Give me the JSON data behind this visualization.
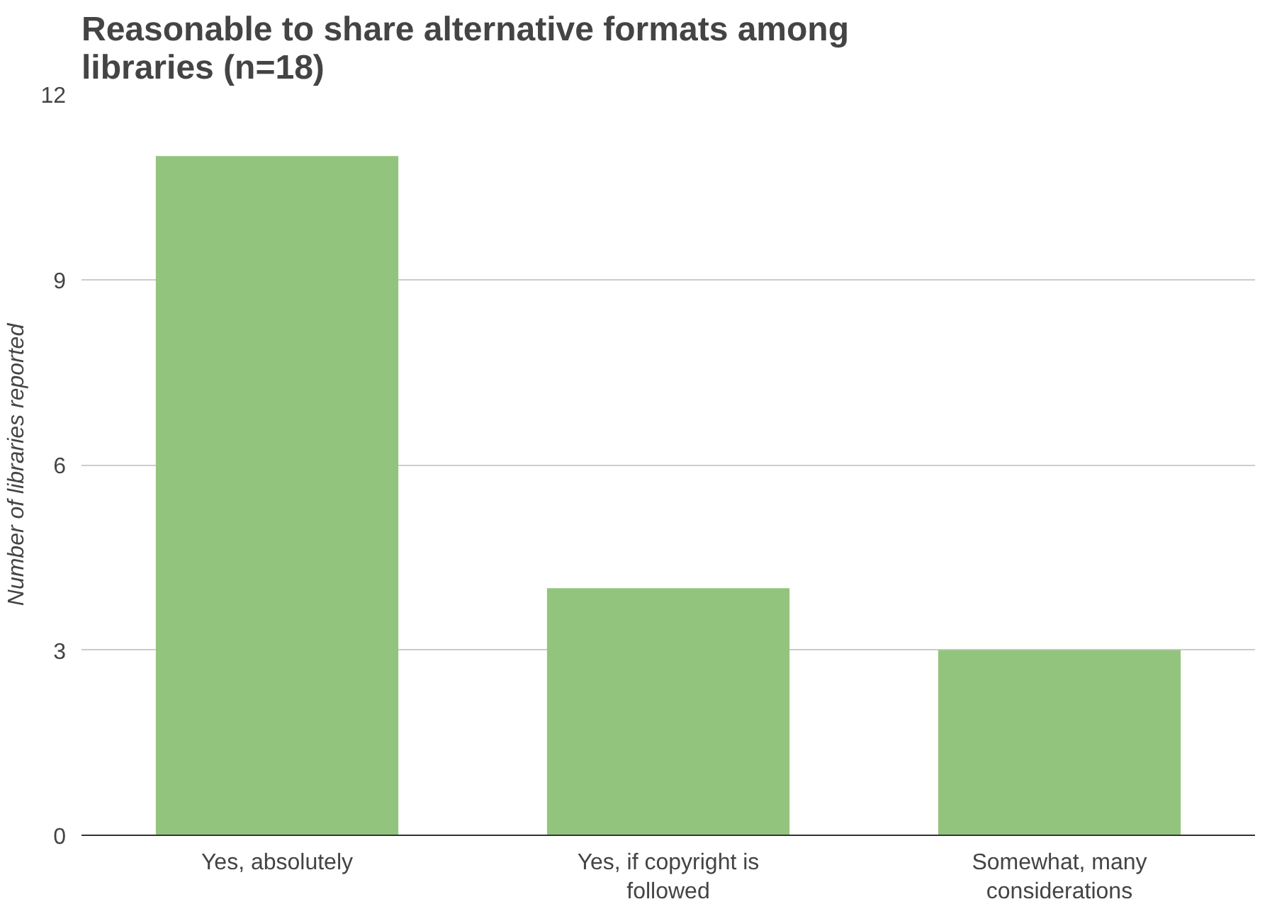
{
  "chart_data": {
    "type": "bar",
    "title": "Reasonable to share alternative formats among libraries (n=18)",
    "ylabel": "Number of libraries reported",
    "categories": [
      "Yes, absolutely",
      "Yes, if copyright is followed",
      "Somewhat, many considerations"
    ],
    "values": [
      11,
      4,
      3
    ],
    "color": "#93c47d",
    "ylim": [
      0,
      12
    ],
    "yticks": [
      0,
      3,
      6,
      9,
      12
    ],
    "grid": "y"
  }
}
